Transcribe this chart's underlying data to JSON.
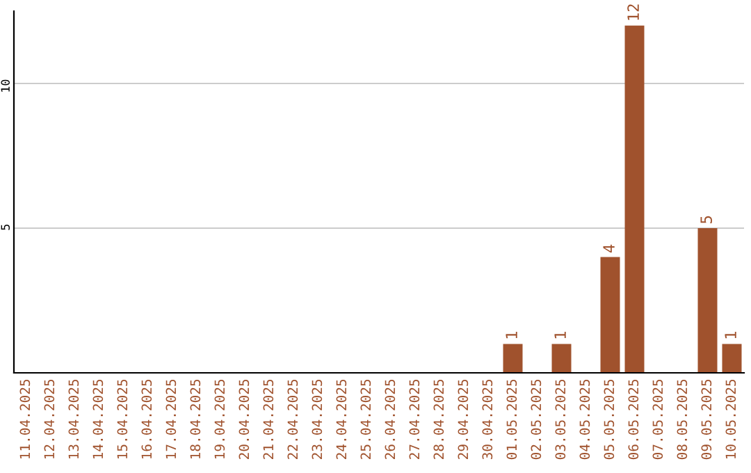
{
  "chart_data": {
    "type": "bar",
    "categories": [
      "11.04.2025",
      "12.04.2025",
      "13.04.2025",
      "14.04.2025",
      "15.04.2025",
      "16.04.2025",
      "17.04.2025",
      "18.04.2025",
      "19.04.2025",
      "20.04.2025",
      "21.04.2025",
      "22.04.2025",
      "23.04.2025",
      "24.04.2025",
      "25.04.2025",
      "26.04.2025",
      "27.04.2025",
      "28.04.2025",
      "29.04.2025",
      "30.04.2025",
      "01.05.2025",
      "02.05.2025",
      "03.05.2025",
      "04.05.2025",
      "05.05.2025",
      "06.05.2025",
      "07.05.2025",
      "08.05.2025",
      "09.05.2025",
      "10.05.2025"
    ],
    "values": [
      0,
      0,
      0,
      0,
      0,
      0,
      0,
      0,
      0,
      0,
      0,
      0,
      0,
      0,
      0,
      0,
      0,
      0,
      0,
      0,
      1,
      0,
      1,
      0,
      4,
      12,
      0,
      0,
      5,
      1
    ],
    "value_labels": [
      null,
      null,
      null,
      null,
      null,
      null,
      null,
      null,
      null,
      null,
      null,
      null,
      null,
      null,
      null,
      null,
      null,
      null,
      null,
      null,
      "1",
      null,
      "1",
      null,
      "4",
      "12",
      null,
      null,
      "5",
      "1"
    ],
    "color": "#a0522d",
    "ylim": [
      0,
      12.5
    ],
    "yticks": [
      5,
      10
    ],
    "grid": "y"
  }
}
